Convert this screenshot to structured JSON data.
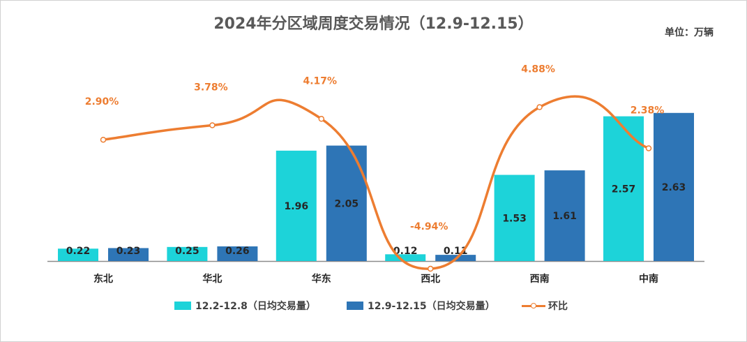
{
  "chart_data": {
    "type": "bar",
    "title": "2024年分区域周度交易情况（12.9-12.15）",
    "unit_label": "单位：万辆",
    "categories": [
      "东北",
      "华北",
      "华东",
      "西北",
      "西南",
      "中南"
    ],
    "series": [
      {
        "name": "12.2-12.8（日均交易量）",
        "type": "bar",
        "color": "#1DD3D9",
        "values": [
          0.22,
          0.25,
          1.96,
          0.12,
          1.53,
          2.57
        ],
        "labels": [
          "0.22",
          "0.25",
          "1.96",
          "0.12",
          "1.53",
          "2.57"
        ]
      },
      {
        "name": "12.9-12.15（日均交易量）",
        "type": "bar",
        "color": "#2E75B6",
        "values": [
          0.23,
          0.26,
          2.05,
          0.11,
          1.61,
          2.63
        ],
        "labels": [
          "0.23",
          "0.26",
          "2.05",
          "0.11",
          "1.61",
          "2.63"
        ]
      },
      {
        "name": "环比",
        "type": "line",
        "color": "#ED7D31",
        "values": [
          2.9,
          3.78,
          4.17,
          -4.94,
          4.88,
          2.38
        ],
        "labels": [
          "2.90%",
          "3.78%",
          "4.17%",
          "-4.94%",
          "4.88%",
          "2.38%"
        ]
      }
    ],
    "ylim_bar": [
      0,
      2.9
    ],
    "ylim_line": [
      -6,
      8
    ],
    "legend": [
      "12.2-12.8（日均交易量）",
      "12.9-12.15（日均交易量）",
      "环比"
    ],
    "legend_position": "bottom"
  }
}
